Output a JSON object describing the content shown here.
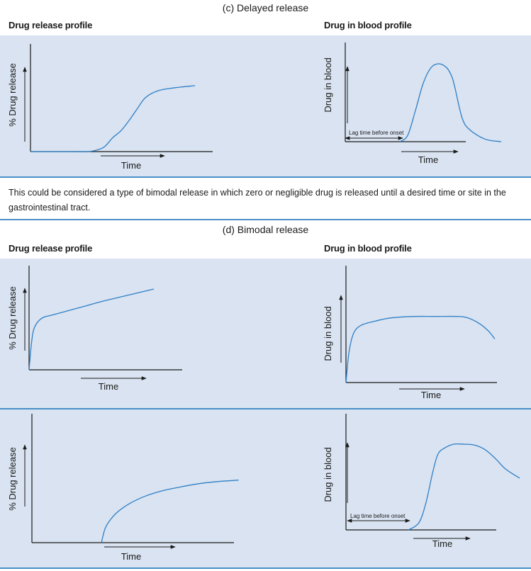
{
  "section_c": {
    "caption": "(c) Delayed release",
    "left_heading": "Drug release profile",
    "right_heading": "Drug in blood profile"
  },
  "note": "This could be considered a type of bimodal release in which zero or negligible drug is released until a desired time or site in the gastrointestinal tract.",
  "section_d": {
    "caption": "(d) Bimodal release",
    "left_heading": "Drug release profile",
    "right_heading": "Drug in blood profile"
  },
  "colors": {
    "panel": "#d9e3f1",
    "rule": "#4a8fc7",
    "curve": "#2f7fc6",
    "axis": "#1a1a1a"
  },
  "chart_data": [
    {
      "id": "c-release",
      "type": "line",
      "xlabel": "Time",
      "ylabel": "% Drug release",
      "series": [
        {
          "x": [
            0,
            25,
            35,
            40,
            45,
            50,
            55,
            60,
            65,
            70,
            78,
            88,
            100
          ],
          "y": [
            0,
            0,
            0,
            2,
            7,
            20,
            30,
            45,
            62,
            78,
            88,
            92,
            95
          ]
        }
      ],
      "xlim": [
        0,
        100
      ],
      "ylim": [
        0,
        100
      ]
    },
    {
      "id": "c-blood",
      "type": "line",
      "xlabel": "Time",
      "ylabel": "Drug in blood",
      "annotation": "Lag time before onset",
      "series": [
        {
          "x": [
            35,
            40,
            45,
            50,
            55,
            60,
            65,
            68,
            70,
            75,
            80,
            90,
            100
          ],
          "y": [
            0,
            8,
            40,
            75,
            95,
            100,
            95,
            85,
            72,
            30,
            15,
            3,
            0
          ]
        }
      ],
      "xlim": [
        0,
        100
      ],
      "ylim": [
        0,
        100
      ]
    },
    {
      "id": "d1-release",
      "type": "line",
      "xlabel": "Time",
      "ylabel": "% Drug release",
      "series": [
        {
          "x": [
            0,
            1.5,
            3,
            5,
            8,
            12,
            20,
            40,
            60,
            80,
            100
          ],
          "y": [
            0,
            25,
            43,
            52,
            58,
            62,
            65,
            73,
            81,
            88,
            95
          ]
        }
      ],
      "xlim": [
        0,
        100
      ],
      "ylim": [
        0,
        100
      ]
    },
    {
      "id": "d1-blood",
      "type": "line",
      "xlabel": "Time",
      "ylabel": "Drug in blood",
      "series": [
        {
          "x": [
            0,
            2,
            5,
            10,
            20,
            30,
            45,
            60,
            75,
            82,
            90,
            96,
            100
          ],
          "y": [
            0,
            40,
            65,
            76,
            82,
            86,
            88,
            88,
            88,
            86,
            78,
            68,
            58
          ]
        }
      ],
      "xlim": [
        0,
        100
      ],
      "ylim": [
        0,
        100
      ]
    },
    {
      "id": "d2-release",
      "type": "line",
      "xlabel": "Time",
      "ylabel": "% Drug release",
      "series": [
        {
          "x": [
            37,
            39,
            42,
            46,
            52,
            60,
            70,
            80,
            90,
            100,
            110
          ],
          "y": [
            0,
            22,
            36,
            48,
            60,
            71,
            80,
            86,
            91,
            94,
            96
          ]
        }
      ],
      "xlim": [
        0,
        100
      ],
      "ylim": [
        0,
        100
      ]
    },
    {
      "id": "d2-blood",
      "type": "line",
      "xlabel": "Time",
      "ylabel": "Drug in blood",
      "annotation": "Lag time before onset",
      "series": [
        {
          "x": [
            36,
            42,
            46,
            50,
            53,
            57,
            62,
            68,
            74,
            80,
            86,
            92,
            100
          ],
          "y": [
            0,
            8,
            30,
            65,
            85,
            92,
            96,
            96,
            95,
            90,
            80,
            68,
            58
          ]
        }
      ],
      "xlim": [
        0,
        100
      ],
      "ylim": [
        0,
        100
      ]
    }
  ]
}
